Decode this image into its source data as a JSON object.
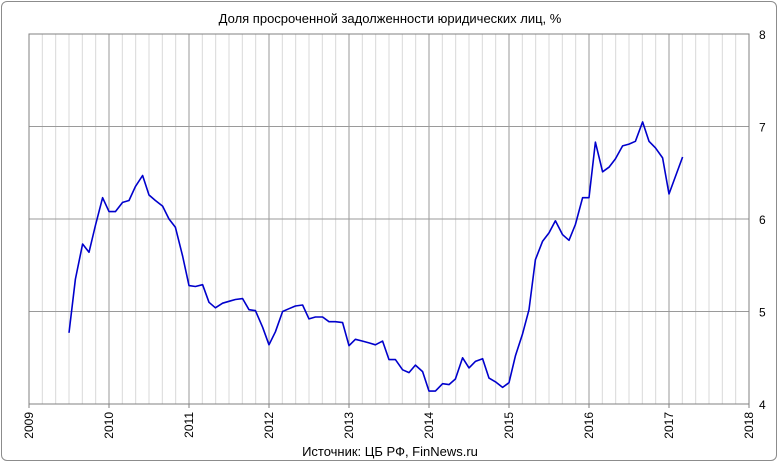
{
  "chart_data": {
    "type": "line",
    "title": "Доля просроченной задолженности юридических лиц, %",
    "source": "Источник: ЦБ РФ, FinNews.ru",
    "xlabel": "",
    "ylabel": "",
    "xlim": [
      2009,
      2018
    ],
    "ylim": [
      4,
      8
    ],
    "x_ticks": [
      2009,
      2010,
      2011,
      2012,
      2013,
      2014,
      2015,
      2016,
      2017,
      2018
    ],
    "y_ticks": [
      4,
      5,
      6,
      7,
      8
    ],
    "y_axis_position": "right",
    "grid": true,
    "line_color": "#0000cc",
    "series": [
      {
        "x": [
          2009.5,
          2009.58,
          2009.67,
          2009.75,
          2009.83,
          2009.92,
          2010.0,
          2010.08,
          2010.17,
          2010.25,
          2010.33,
          2010.42,
          2010.5,
          2010.58,
          2010.67,
          2010.75,
          2010.83,
          2010.92,
          2011.0,
          2011.08,
          2011.17,
          2011.25,
          2011.33,
          2011.42,
          2011.5,
          2011.58,
          2011.67,
          2011.75,
          2011.83,
          2011.92,
          2012.0,
          2012.08,
          2012.17,
          2012.25,
          2012.33,
          2012.42,
          2012.5,
          2012.58,
          2012.67,
          2012.75,
          2012.83,
          2012.92,
          2013.0,
          2013.08,
          2013.17,
          2013.25,
          2013.33,
          2013.42,
          2013.5,
          2013.58,
          2013.67,
          2013.75,
          2013.83,
          2013.92,
          2014.0,
          2014.08,
          2014.17,
          2014.25,
          2014.33,
          2014.42,
          2014.5,
          2014.58,
          2014.67,
          2014.75,
          2014.83,
          2014.92,
          2015.0,
          2015.08,
          2015.17,
          2015.25,
          2015.33,
          2015.42,
          2015.5,
          2015.58,
          2015.67,
          2015.75,
          2015.83,
          2015.92,
          2016.0,
          2016.08,
          2016.17,
          2016.25,
          2016.33,
          2016.42,
          2016.5,
          2016.58,
          2016.67,
          2016.75,
          2016.83,
          2016.92,
          2017.0,
          2017.17
        ],
        "values": [
          4.77,
          5.35,
          5.73,
          5.64,
          5.93,
          6.23,
          6.08,
          6.08,
          6.18,
          6.2,
          6.35,
          6.47,
          6.26,
          6.2,
          6.14,
          6.0,
          5.91,
          5.6,
          5.28,
          5.27,
          5.29,
          5.1,
          5.04,
          5.09,
          5.11,
          5.13,
          5.14,
          5.02,
          5.01,
          4.83,
          4.64,
          4.78,
          5.0,
          5.03,
          5.06,
          5.07,
          4.92,
          4.94,
          4.94,
          4.89,
          4.89,
          4.88,
          4.63,
          4.7,
          4.68,
          4.66,
          4.64,
          4.68,
          4.48,
          4.48,
          4.37,
          4.34,
          4.42,
          4.35,
          4.14,
          4.14,
          4.22,
          4.21,
          4.27,
          4.5,
          4.39,
          4.46,
          4.49,
          4.28,
          4.24,
          4.18,
          4.23,
          4.52,
          4.76,
          5.02,
          5.56,
          5.76,
          5.85,
          5.98,
          5.83,
          5.77,
          5.94,
          6.23,
          6.23,
          6.83,
          6.51,
          6.56,
          6.65,
          6.79,
          6.81,
          6.84,
          7.05,
          6.84,
          6.77,
          6.66,
          6.27,
          6.67
        ]
      }
    ]
  }
}
